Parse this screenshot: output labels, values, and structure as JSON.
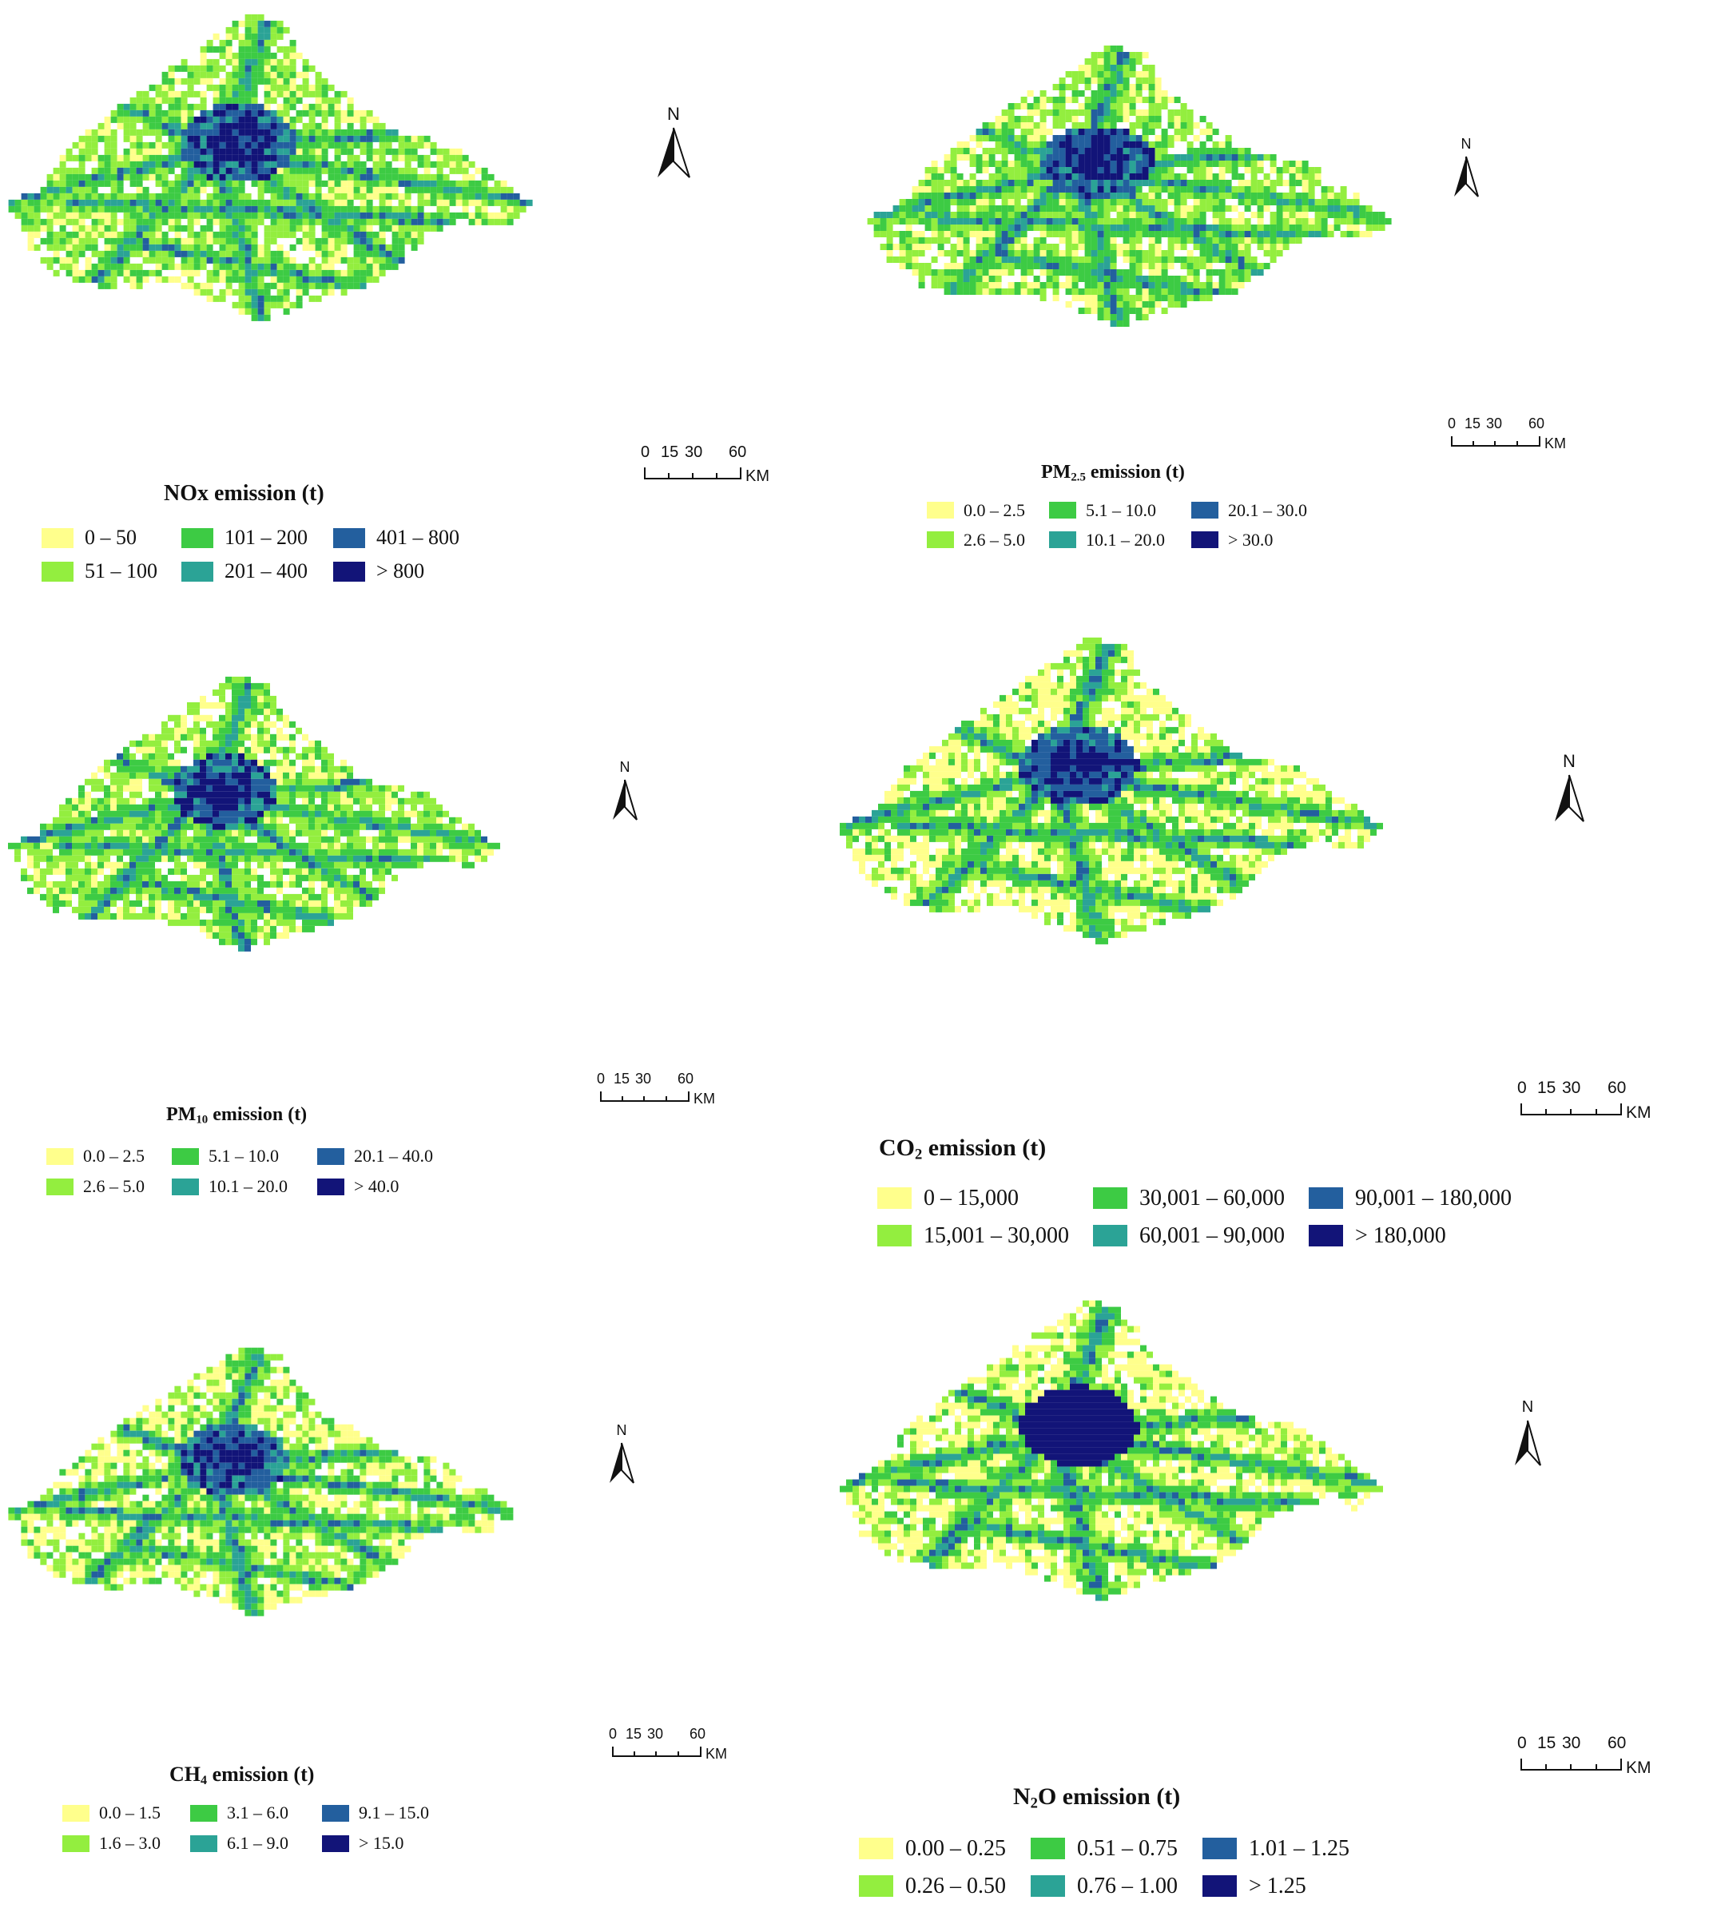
{
  "colors": {
    "c1": "#FFFF8C",
    "c2": "#93EE3F",
    "c3": "#3DCB44",
    "c4": "#2BA396",
    "c5": "#235F9E",
    "c6": "#121478"
  },
  "north_label": "N",
  "scale": {
    "ticks": [
      "0",
      "15",
      "30",
      "60"
    ],
    "unit": "KM"
  },
  "panels": [
    {
      "id": "nox",
      "pollutant": "NOx",
      "title_main": "NOx",
      "title_sub": "",
      "title_rest": " emission (t)",
      "classes": [
        "0 – 50",
        "51 – 100",
        "101 – 200",
        "201 – 400",
        "401 – 800",
        "> 800"
      ]
    },
    {
      "id": "pm25",
      "pollutant": "PM2.5",
      "title_main": "PM",
      "title_sub": "2.5",
      "title_rest": " emission (t)",
      "classes": [
        "0.0 – 2.5",
        "2.6 – 5.0",
        "5.1 – 10.0",
        "10.1 – 20.0",
        "20.1 – 30.0",
        "> 30.0"
      ]
    },
    {
      "id": "pm10",
      "pollutant": "PM10",
      "title_main": "PM",
      "title_sub": "10",
      "title_rest": " emission (t)",
      "classes": [
        "0.0 – 2.5",
        "2.6 – 5.0",
        "5.1 – 10.0",
        "10.1 – 20.0",
        "20.1 – 40.0",
        "> 40.0"
      ]
    },
    {
      "id": "co2",
      "pollutant": "CO2",
      "title_main": "CO",
      "title_sub": "2",
      "title_rest": " emission (t)",
      "classes": [
        "0 – 15,000",
        "15,001 – 30,000",
        "30,001 – 60,000",
        "60,001 – 90,000",
        "90,001 – 180,000",
        "> 180,000"
      ]
    },
    {
      "id": "ch4",
      "pollutant": "CH4",
      "title_main": "CH",
      "title_sub": "4",
      "title_rest": " emission (t)",
      "classes": [
        "0.0 – 1.5",
        "1.6 – 3.0",
        "3.1 – 6.0",
        "6.1 – 9.0",
        "9.1 – 15.0",
        "> 15.0"
      ]
    },
    {
      "id": "n2o",
      "pollutant": "N2O",
      "title_main": "N",
      "title_sub": "2",
      "title_rest": "O emission (t)",
      "classes": [
        "0.00 – 0.25",
        "0.26 – 0.50",
        "0.51 – 0.75",
        "0.76 – 1.00",
        "1.01 – 1.25",
        "> 1.25"
      ]
    }
  ]
}
